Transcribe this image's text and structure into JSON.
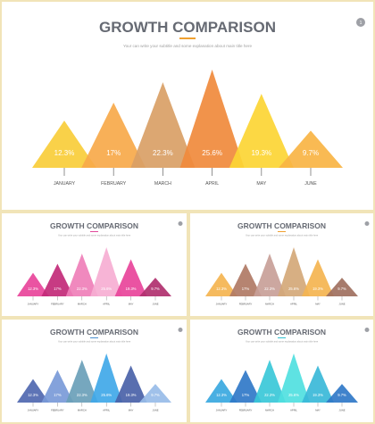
{
  "slides": [
    {
      "title": "GROWTH COMPARISON",
      "subtitle": "Your can write your subtitle and some explanation about main title here",
      "page_number": "1",
      "accent": "#f0a030",
      "chart_data": {
        "type": "bar",
        "style": "triangle",
        "categories": [
          "JANUARY",
          "FEBRUARY",
          "MARCH",
          "APRIL",
          "MAY",
          "JUNE"
        ],
        "values": [
          12.3,
          17,
          22.3,
          25.6,
          19.3,
          9.7
        ],
        "value_labels": [
          "12.3%",
          "17%",
          "22.3%",
          "25.6%",
          "19.3%",
          "9.7%"
        ],
        "colors": [
          "#f9cd3a",
          "#f7a94a",
          "#d9a066",
          "#f08a3c",
          "#fcd534",
          "#f8b444"
        ]
      }
    },
    {
      "title": "GROWTH COMPARISON",
      "subtitle": "Your can write your subtitle and some explanation about main title here",
      "page_number": "",
      "accent": "#e0489a",
      "chart_data": {
        "type": "bar",
        "style": "triangle",
        "categories": [
          "JANUARY",
          "FEBRUARY",
          "MARCH",
          "APRIL",
          "MAY",
          "JUNE"
        ],
        "values": [
          12.3,
          17,
          22.3,
          25.6,
          19.3,
          9.7
        ],
        "value_labels": [
          "12.3%",
          "17%",
          "22.3%",
          "25.6%",
          "19.3%",
          "9.7%"
        ],
        "colors": [
          "#e8449a",
          "#c22a78",
          "#ef7fb8",
          "#f6aed2",
          "#e8449a",
          "#b0306e"
        ]
      }
    },
    {
      "title": "GROWTH COMPARISON",
      "subtitle": "Your can write your subtitle and some explanation about main title here",
      "page_number": "",
      "accent": "#f0a030",
      "chart_data": {
        "type": "bar",
        "style": "triangle",
        "categories": [
          "JANUARY",
          "FEBRUARY",
          "MARCH",
          "APRIL",
          "MAY",
          "JUNE"
        ],
        "values": [
          12.3,
          17,
          22.3,
          25.6,
          19.3,
          9.7
        ],
        "value_labels": [
          "12.3%",
          "17%",
          "22.3%",
          "25.6%",
          "19.3%",
          "9.7%"
        ],
        "colors": [
          "#f4b450",
          "#b07a65",
          "#c8a098",
          "#d4a878",
          "#f4b450",
          "#a07060"
        ]
      }
    },
    {
      "title": "GROWTH COMPARISON",
      "subtitle": "Your can write your subtitle and some explanation about main title here",
      "page_number": "",
      "accent": "#4a8fd0",
      "chart_data": {
        "type": "bar",
        "style": "triangle",
        "categories": [
          "JANUARY",
          "FEBRUARY",
          "MARCH",
          "APRIL",
          "MAY",
          "JUNE"
        ],
        "values": [
          12.3,
          17,
          22.3,
          25.6,
          19.3,
          9.7
        ],
        "value_labels": [
          "12.3%",
          "17%",
          "22.3%",
          "25.6%",
          "19.3%",
          "9.7%"
        ],
        "colors": [
          "#5068b0",
          "#7a9ad8",
          "#6aa0b8",
          "#40a8e8",
          "#4a62a8",
          "#98bce8"
        ]
      }
    },
    {
      "title": "GROWTH COMPARISON",
      "subtitle": "Your can write your subtitle and some explanation about main title here",
      "page_number": "",
      "accent": "#30c0d0",
      "chart_data": {
        "type": "bar",
        "style": "triangle",
        "categories": [
          "JANUARY",
          "FEBRUARY",
          "MARCH",
          "APRIL",
          "MAY",
          "JUNE"
        ],
        "values": [
          12.3,
          17,
          22.3,
          25.6,
          19.3,
          9.7
        ],
        "value_labels": [
          "12.3%",
          "17%",
          "22.3%",
          "25.6%",
          "19.3%",
          "9.7%"
        ],
        "colors": [
          "#3aa8e0",
          "#3078c8",
          "#3ac8d8",
          "#50e0e0",
          "#3ab8d8",
          "#3078c8"
        ]
      }
    }
  ]
}
